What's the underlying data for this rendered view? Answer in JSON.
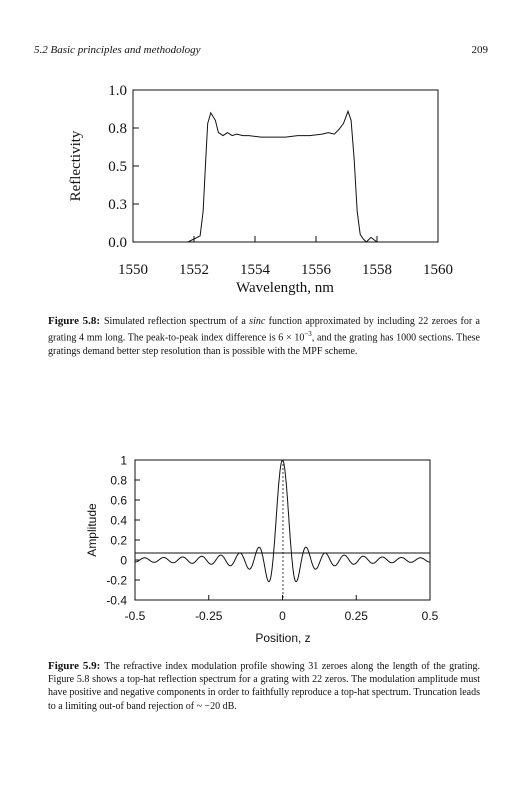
{
  "header": {
    "section": "5.2 Basic principles and methodology",
    "page": "209"
  },
  "figures": [
    {
      "caption_label": "Figure 5.8:",
      "caption_pre": "Simulated reflection spectrum of a ",
      "caption_em": "sinc",
      "caption_post": " function approximated by including 22 zeroes for a grating 4 mm long. The peak-to-peak index difference is 6 × 10",
      "caption_sup": "−3",
      "caption_end": ", and the grating has 1000 sections. These gratings demand better step resolution than is possible with the MPF scheme."
    },
    {
      "caption_label": "Figure 5.9:",
      "caption_text": "The refractive index modulation profile showing 31 zeroes along the length of the grating. Figure 5.8 shows a top-hat reflection spectrum for a grating with 22 zeros. The modulation amplitude must have positive and negative components in order to faithfully reproduce a top-hat spectrum. Truncation leads to a limiting out-of band rejection of ~ −20 dB."
    }
  ],
  "chart_data": [
    {
      "type": "line",
      "xlabel": "Wavelength, nm",
      "ylabel": "Reflectivity",
      "xlim": [
        1550,
        1560
      ],
      "ylim": [
        0,
        1.0
      ],
      "x_ticks": [
        "1550",
        "1552",
        "1554",
        "1556",
        "1558",
        "1560"
      ],
      "y_ticks": [
        "0.0",
        "0.3",
        "0.5",
        "0.8",
        "1.0"
      ],
      "y_tick_values": [
        0.0,
        0.25,
        0.5,
        0.75,
        1.0
      ],
      "series": [
        {
          "x": [
            1550,
            1551.8,
            1552.0,
            1552.2,
            1552.3,
            1552.4,
            1552.45,
            1552.55,
            1552.7,
            1552.8,
            1552.95,
            1553.1,
            1553.25,
            1553.4,
            1553.6,
            1553.8,
            1554.2,
            1554.6,
            1555.0,
            1555.4,
            1555.8,
            1556.2,
            1556.4,
            1556.6,
            1556.75,
            1556.9,
            1557.05,
            1557.15,
            1557.25,
            1557.35,
            1557.45,
            1557.55,
            1557.65,
            1557.8,
            1558.0,
            1558.2,
            1560
          ],
          "y": [
            0.0,
            0.0,
            0.02,
            0.04,
            0.2,
            0.6,
            0.78,
            0.85,
            0.8,
            0.72,
            0.7,
            0.72,
            0.7,
            0.71,
            0.7,
            0.7,
            0.69,
            0.69,
            0.69,
            0.7,
            0.7,
            0.71,
            0.72,
            0.71,
            0.74,
            0.78,
            0.86,
            0.8,
            0.55,
            0.2,
            0.05,
            0.02,
            0.0,
            0.03,
            0.0,
            0.0,
            0.0
          ]
        }
      ]
    },
    {
      "type": "line",
      "xlabel": "Position, z",
      "ylabel": "Amplitude",
      "xlim": [
        -0.5,
        0.5
      ],
      "ylim": [
        -0.4,
        1
      ],
      "x_ticks": [
        "-0.5",
        "-0.25",
        "0",
        "0.25",
        "0.5"
      ],
      "x_tick_values": [
        -0.5,
        -0.25,
        0,
        0.25,
        0.5
      ],
      "y_ticks": [
        "1",
        "0.8",
        "0.6",
        "0.4",
        "0.2",
        "0",
        "-0.2",
        "-0.4"
      ],
      "y_tick_values": [
        1,
        0.8,
        0.6,
        0.4,
        0.2,
        0,
        -0.2,
        -0.4
      ],
      "function": "sin(x)/x",
      "zeroes": 31,
      "series": [
        {
          "x_range": [
            -0.5,
            0.5
          ],
          "peak": 1
        }
      ]
    }
  ]
}
